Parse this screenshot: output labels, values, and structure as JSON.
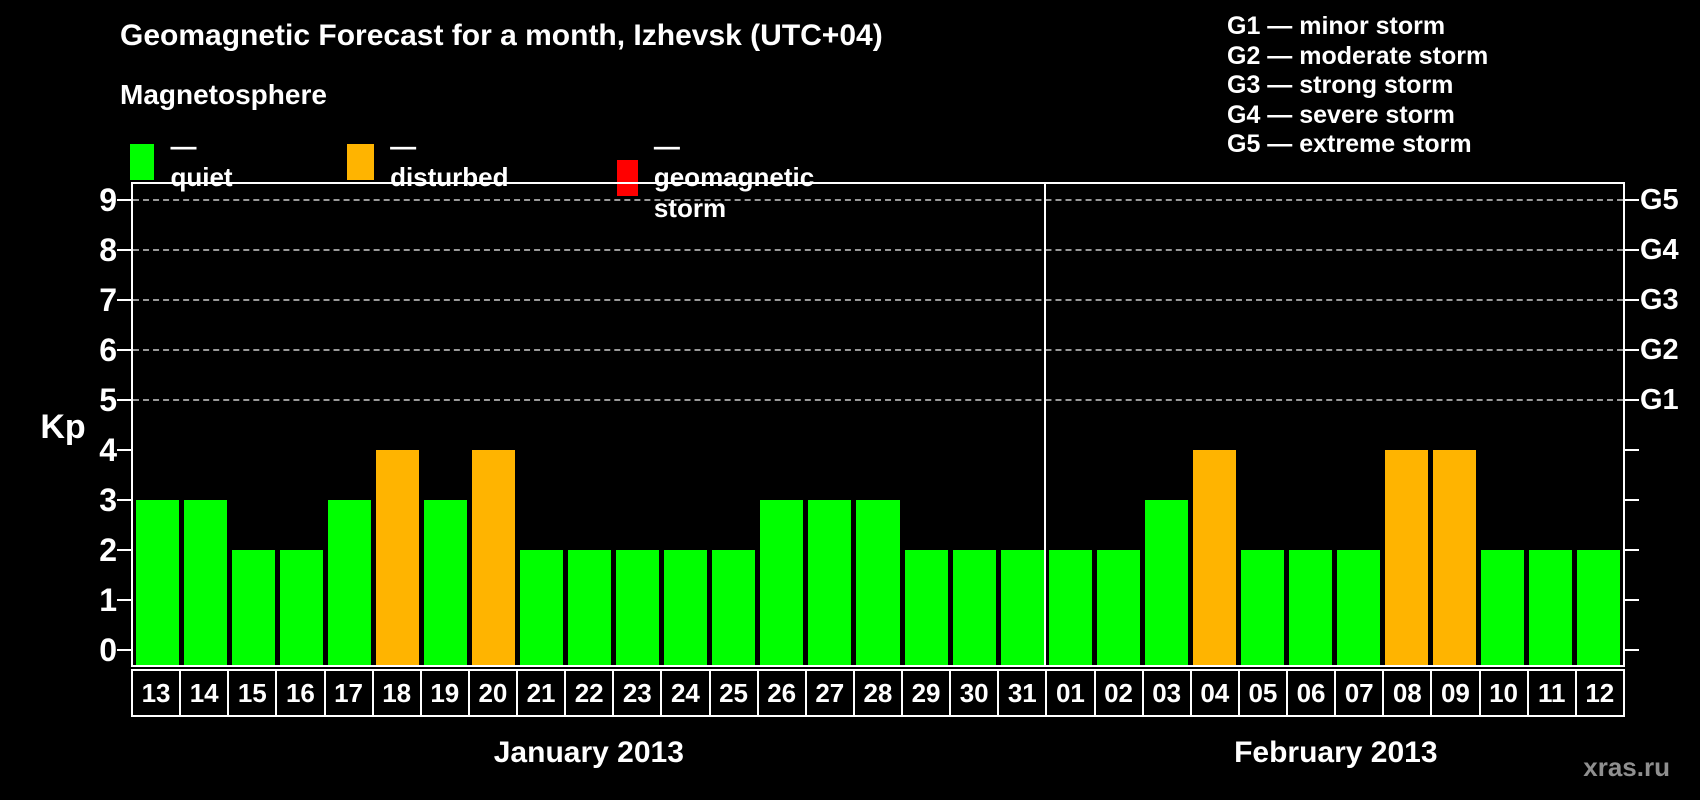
{
  "title": "Geomagnetic Forecast for a month, Izhevsk (UTC+04)",
  "subtitle": "Magnetosphere",
  "legend": {
    "items": [
      {
        "name": "quiet",
        "label": "— quiet",
        "color": "#00ff00"
      },
      {
        "name": "disturbed",
        "label": "— disturbed",
        "color": "#ffb400"
      },
      {
        "name": "geomagnetic storm",
        "label": "— geomagnetic storm",
        "color": "#ff0000"
      }
    ]
  },
  "storm_scale_legend": [
    "G1 — minor storm",
    "G2 — moderate storm",
    "G3 — strong storm",
    "G4 — severe storm",
    "G5 — extreme storm"
  ],
  "watermark": "xras.ru",
  "chart_data": {
    "type": "bar",
    "ylabel": "Kp",
    "ylim": [
      0,
      9
    ],
    "yticks": [
      0,
      1,
      2,
      3,
      4,
      5,
      6,
      7,
      8,
      9
    ],
    "gridlines_at": [
      5,
      6,
      7,
      8,
      9
    ],
    "grid": "dashed horizontal at storm levels only",
    "right_axis_labels": [
      {
        "kp": 5,
        "label": "G1"
      },
      {
        "kp": 6,
        "label": "G2"
      },
      {
        "kp": 7,
        "label": "G3"
      },
      {
        "kp": 8,
        "label": "G4"
      },
      {
        "kp": 9,
        "label": "G5"
      }
    ],
    "months": [
      {
        "label": "January 2013",
        "days": 19
      },
      {
        "label": "February 2013",
        "days": 12
      }
    ],
    "categories": [
      "13",
      "14",
      "15",
      "16",
      "17",
      "18",
      "19",
      "20",
      "21",
      "22",
      "23",
      "24",
      "25",
      "26",
      "27",
      "28",
      "29",
      "30",
      "31",
      "01",
      "02",
      "03",
      "04",
      "05",
      "06",
      "07",
      "08",
      "09",
      "10",
      "11",
      "12"
    ],
    "values": [
      3,
      3,
      2,
      2,
      3,
      4,
      3,
      4,
      2,
      2,
      2,
      2,
      2,
      3,
      3,
      3,
      2,
      2,
      2,
      2,
      2,
      3,
      4,
      2,
      2,
      2,
      4,
      4,
      2,
      2,
      2
    ],
    "statuses": [
      "quiet",
      "quiet",
      "quiet",
      "quiet",
      "quiet",
      "disturbed",
      "quiet",
      "disturbed",
      "quiet",
      "quiet",
      "quiet",
      "quiet",
      "quiet",
      "quiet",
      "quiet",
      "quiet",
      "quiet",
      "quiet",
      "quiet",
      "quiet",
      "quiet",
      "quiet",
      "disturbed",
      "quiet",
      "quiet",
      "quiet",
      "disturbed",
      "disturbed",
      "quiet",
      "quiet",
      "quiet"
    ],
    "status_colors": {
      "quiet": "#00ff00",
      "disturbed": "#ffb400",
      "storm": "#ff0000"
    }
  }
}
